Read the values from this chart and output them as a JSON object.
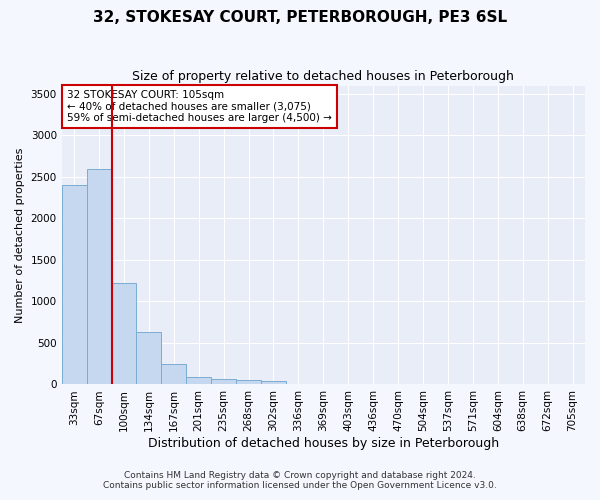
{
  "title": "32, STOKESAY COURT, PETERBOROUGH, PE3 6SL",
  "subtitle": "Size of property relative to detached houses in Peterborough",
  "xlabel": "Distribution of detached houses by size in Peterborough",
  "ylabel": "Number of detached properties",
  "categories": [
    "33sqm",
    "67sqm",
    "100sqm",
    "134sqm",
    "167sqm",
    "201sqm",
    "235sqm",
    "268sqm",
    "302sqm",
    "336sqm",
    "369sqm",
    "403sqm",
    "436sqm",
    "470sqm",
    "504sqm",
    "537sqm",
    "571sqm",
    "604sqm",
    "638sqm",
    "672sqm",
    "705sqm"
  ],
  "values": [
    2400,
    2600,
    1220,
    630,
    250,
    90,
    65,
    55,
    40,
    0,
    0,
    0,
    0,
    0,
    0,
    0,
    0,
    0,
    0,
    0,
    0
  ],
  "bar_color": "#c5d8f0",
  "bar_edge_color": "#7aadd4",
  "redline_x": 1.5,
  "ylim": [
    0,
    3600
  ],
  "yticks": [
    0,
    500,
    1000,
    1500,
    2000,
    2500,
    3000,
    3500
  ],
  "annotation_text": "32 STOKESAY COURT: 105sqm\n← 40% of detached houses are smaller (3,075)\n59% of semi-detached houses are larger (4,500) →",
  "annotation_box_color": "#ffffff",
  "annotation_box_edge_color": "#cc0000",
  "footer_line1": "Contains HM Land Registry data © Crown copyright and database right 2024.",
  "footer_line2": "Contains public sector information licensed under the Open Government Licence v3.0.",
  "bg_color": "#f5f7ff",
  "plot_bg_color": "#e8edf8",
  "grid_color": "#ffffff",
  "title_fontsize": 11,
  "subtitle_fontsize": 9,
  "tick_fontsize": 7.5,
  "ylabel_fontsize": 8,
  "xlabel_fontsize": 9
}
